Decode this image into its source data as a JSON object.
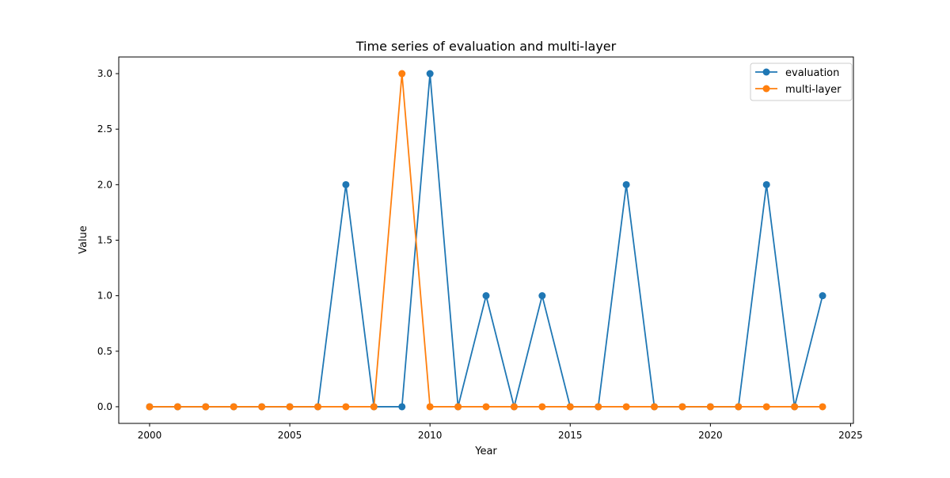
{
  "chart_data": {
    "type": "line",
    "title": "Time series of evaluation and multi-layer",
    "xlabel": "Year",
    "ylabel": "Value",
    "x": [
      2000,
      2001,
      2002,
      2003,
      2004,
      2005,
      2006,
      2007,
      2008,
      2009,
      2010,
      2011,
      2012,
      2013,
      2014,
      2015,
      2016,
      2017,
      2018,
      2019,
      2020,
      2021,
      2022,
      2023,
      2024
    ],
    "xlim": [
      1998.9,
      2025.1
    ],
    "ylim": [
      -0.15,
      3.15
    ],
    "xticks": [
      2000,
      2005,
      2010,
      2015,
      2020,
      2025
    ],
    "yticks": [
      0.0,
      0.5,
      1.0,
      1.5,
      2.0,
      2.5,
      3.0
    ],
    "xtick_labels": [
      "2000",
      "2005",
      "2010",
      "2015",
      "2020",
      "2025"
    ],
    "ytick_labels": [
      "0.0",
      "0.5",
      "1.0",
      "1.5",
      "2.0",
      "2.5",
      "3.0"
    ],
    "grid": false,
    "legend_position": "top-right",
    "series": [
      {
        "name": "evaluation",
        "color": "#1f77b4",
        "marker": "circle",
        "values": [
          0,
          0,
          0,
          0,
          0,
          0,
          0,
          2,
          0,
          0,
          3,
          0,
          1,
          0,
          1,
          0,
          0,
          2,
          0,
          0,
          0,
          0,
          2,
          0,
          1
        ]
      },
      {
        "name": "multi-layer",
        "color": "#ff7f0e",
        "marker": "circle",
        "values": [
          0,
          0,
          0,
          0,
          0,
          0,
          0,
          0,
          0,
          3,
          0,
          0,
          0,
          0,
          0,
          0,
          0,
          0,
          0,
          0,
          0,
          0,
          0,
          0,
          0
        ]
      }
    ]
  }
}
